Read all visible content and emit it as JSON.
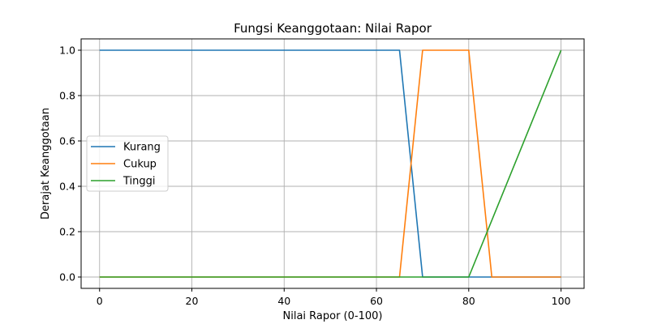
{
  "chart_data": {
    "type": "line",
    "title": "Fungsi Keanggotaan: Nilai Rapor",
    "xlabel": "Nilai Rapor (0-100)",
    "ylabel": "Derajat Keanggotaan",
    "xlim": [
      -4,
      105
    ],
    "ylim": [
      -0.05,
      1.05
    ],
    "xticks": [
      0,
      20,
      40,
      60,
      80,
      100
    ],
    "yticks": [
      0.0,
      0.2,
      0.4,
      0.6,
      0.8,
      1.0
    ],
    "xtick_labels": [
      "0",
      "20",
      "40",
      "60",
      "80",
      "100"
    ],
    "ytick_labels": [
      "0.0",
      "0.2",
      "0.4",
      "0.6",
      "0.8",
      "1.0"
    ],
    "grid": true,
    "legend_position": "center-left",
    "series": [
      {
        "name": "Kurang",
        "color": "#1f77b4",
        "x": [
          0,
          65,
          70,
          100
        ],
        "y": [
          1,
          1,
          0,
          0
        ]
      },
      {
        "name": "Cukup",
        "color": "#ff7f0e",
        "x": [
          0,
          65,
          70,
          80,
          85,
          100
        ],
        "y": [
          0,
          0,
          1,
          1,
          0,
          0
        ]
      },
      {
        "name": "Tinggi",
        "color": "#2ca02c",
        "x": [
          0,
          80,
          100
        ],
        "y": [
          0,
          0,
          1
        ]
      }
    ]
  }
}
